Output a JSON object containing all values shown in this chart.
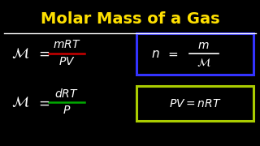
{
  "title": "Molar Mass of a Gas",
  "title_color": "#FFE000",
  "title_underline_color": "#FFFFFF",
  "bg_color": "#000000",
  "text_color": "#FFFFFF",
  "box1_color": "#3333FF",
  "box2_color": "#AACC00",
  "frac1_line_color": "#CC0000",
  "frac2_line_color": "#00AA00"
}
